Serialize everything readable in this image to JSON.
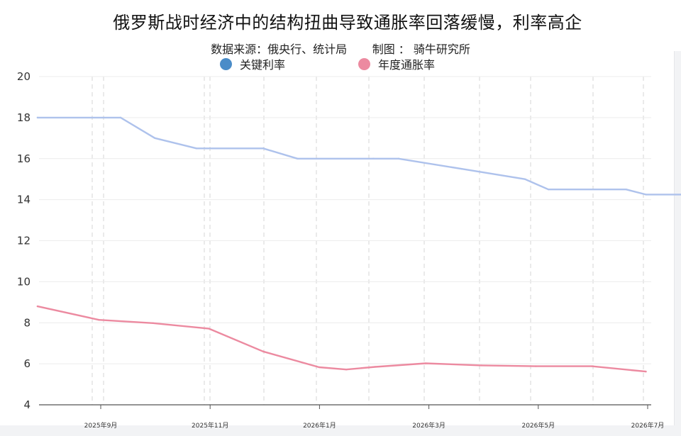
{
  "chart_data": {
    "type": "line",
    "title": "俄罗斯战时经济中的结构扭曲导致通胀率回落缓慢，利率高企",
    "subtitle": "数据来源：俄央行、统计局       制图 ： 骑牛研究所",
    "ylim": [
      4,
      20
    ],
    "yticks": [
      "20",
      "18",
      "16",
      "14",
      "12",
      "10",
      "8",
      "6",
      "4"
    ],
    "xticks": [
      "2025年9月",
      "2025年11月",
      "2026年1月",
      "2026年3月",
      "2026年5月",
      "2026年7月"
    ],
    "legend_position": "top-center",
    "grid": true,
    "series": [
      {
        "name": "关键利率",
        "color": "#aec2ec",
        "legend_color": "#4a8cc8",
        "x": [
          "2025-07-28",
          "2025-09-12",
          "2025-10-01",
          "2025-10-24",
          "2025-11-30",
          "2025-12-19",
          "2026-01-30",
          "2026-02-13",
          "2026-03-20",
          "2026-04-24",
          "2026-05-07",
          "2026-06-19",
          "2026-06-30",
          "2026-07-31"
        ],
        "y": [
          18,
          18,
          17,
          16.5,
          16.5,
          16,
          16,
          16,
          15.5,
          15,
          14.5,
          14.5,
          14.25,
          14.25
        ]
      },
      {
        "name": "年度通胀率",
        "color": "#ec8aa0",
        "legend_color": "#ec8aa0",
        "x": [
          "2025-07-28",
          "2025-08-31",
          "2025-09-30",
          "2025-10-31",
          "2025-11-30",
          "2025-12-31",
          "2026-01-15",
          "2026-01-31",
          "2026-02-28",
          "2026-03-31",
          "2026-04-30",
          "2026-05-31",
          "2026-06-30"
        ],
        "y": [
          8.8,
          8.14,
          7.98,
          7.71,
          6.6,
          5.83,
          5.72,
          5.85,
          6.02,
          5.92,
          5.88,
          5.88,
          5.62
        ]
      }
    ]
  }
}
